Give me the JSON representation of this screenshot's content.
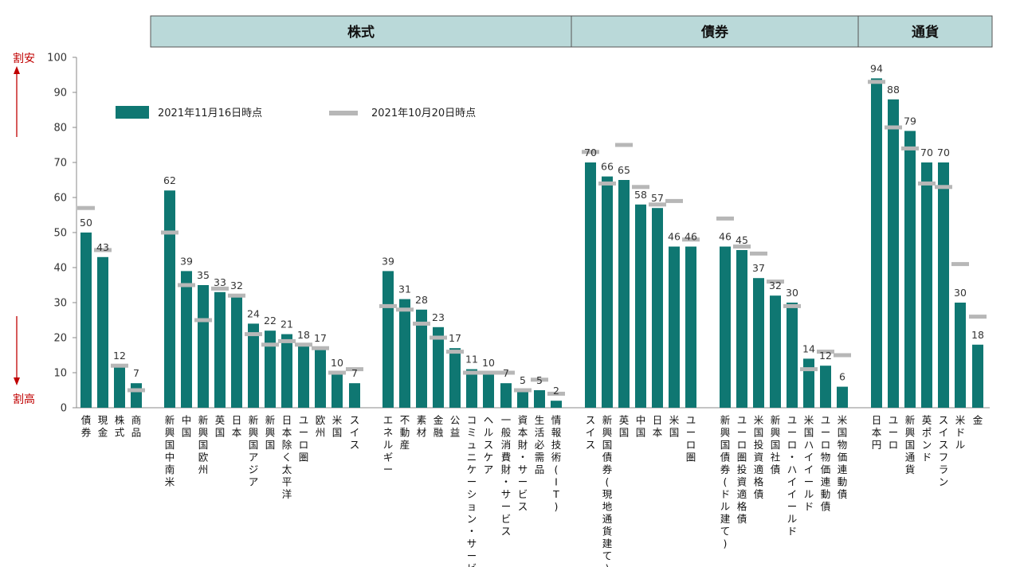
{
  "chart_data": {
    "type": "bar",
    "ylim": [
      0,
      100
    ],
    "yticks": [
      0,
      10,
      20,
      30,
      40,
      50,
      60,
      70,
      80,
      90,
      100
    ],
    "grid": false,
    "side_labels": {
      "top": "割安",
      "bottom": "割高"
    },
    "colors": {
      "bar": "#0f7772",
      "marker": "#b7b7b7",
      "header_fill": "#bad9d9",
      "header_border": "#555555",
      "arrow": "#c00000"
    },
    "legend": {
      "placement": "top-left",
      "series_current": "2021年11月16日時点",
      "series_previous": "2021年10月20日時点"
    },
    "group_headers": [
      "株式",
      "債券",
      "通貨"
    ],
    "categories": [
      "債券",
      "現金",
      "株式",
      "商品",
      "新興国中南米",
      "中国",
      "新興国欧州",
      "英国",
      "日本",
      "新興国アジア",
      "新興国",
      "日本除く太平洋",
      "ユーロ圏",
      "欧州",
      "米国",
      "スイス",
      "エネルギー",
      "不動産",
      "素材",
      "金融",
      "公益",
      "コミュニケーション・サービス",
      "ヘルスケア",
      "一般消費財・サービス",
      "資本財・サービス",
      "生活必需品",
      "情報技術(IT)",
      "スイス",
      "新興国債券(現地通貨建て)",
      "英国",
      "中国",
      "日本",
      "米国",
      "ユーロ圏",
      "新興国債券(ドル建て)",
      "ユーロ圏投資適格債",
      "米国投資適格債",
      "新興国社債",
      "ユーロ・ハイイールド",
      "米国ハイイールド",
      "ユーロ物価連動債",
      "米国物価連動債",
      "日本円",
      "ユーロ",
      "新興国通貨",
      "英ポンド",
      "スイスフラン",
      "米ドル",
      "金"
    ],
    "series": [
      {
        "name": "2021年11月16日時点",
        "values": [
          50,
          43,
          12,
          7,
          62,
          39,
          35,
          33,
          32,
          24,
          22,
          21,
          18,
          17,
          10,
          7,
          39,
          31,
          28,
          23,
          17,
          11,
          10,
          7,
          5,
          5,
          2,
          70,
          66,
          65,
          58,
          57,
          46,
          46,
          46,
          45,
          37,
          32,
          30,
          14,
          12,
          6,
          94,
          88,
          79,
          70,
          70,
          30,
          18
        ]
      },
      {
        "name": "2021年10月20日時点",
        "values": [
          57,
          45,
          12,
          5,
          50,
          35,
          25,
          34,
          32,
          21,
          18,
          19,
          18,
          17,
          10,
          11,
          29,
          28,
          24,
          20,
          16,
          10,
          10,
          10,
          5,
          8,
          4,
          73,
          64,
          75,
          63,
          58,
          59,
          48,
          54,
          46,
          44,
          36,
          29,
          11,
          16,
          15,
          93,
          80,
          74,
          64,
          63,
          41,
          26
        ]
      }
    ],
    "value_labels": [
      "50",
      "43",
      "12",
      "7",
      "62",
      "39",
      "35",
      "33",
      "32",
      "24",
      "22",
      "21",
      "18",
      "17",
      "10",
      "7",
      "39",
      "31",
      "28",
      "23",
      "17",
      "11",
      "10",
      "7",
      "5",
      "5",
      "2",
      "70",
      "66",
      "65",
      "58",
      "57",
      "46",
      "46",
      "46",
      "45",
      "37",
      "32",
      "30",
      "14",
      "12",
      "6",
      "94",
      "88",
      "79",
      "70",
      "70",
      "30",
      "18"
    ]
  }
}
